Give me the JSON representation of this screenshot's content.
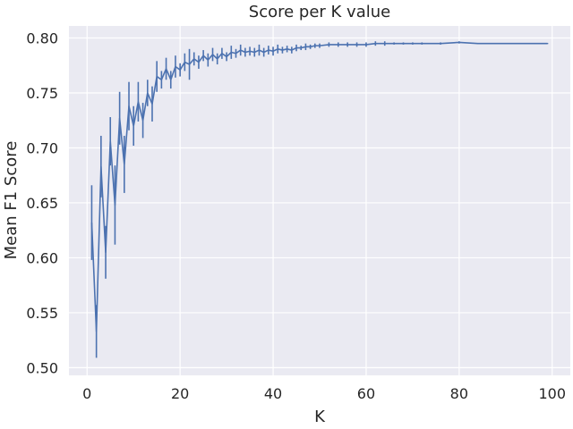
{
  "chart_data": {
    "type": "line",
    "title": "Score per K value",
    "xlabel": "K",
    "ylabel": "Mean F1 Score",
    "xlim": [
      -3.9,
      103.9
    ],
    "ylim": [
      0.493,
      0.811
    ],
    "grid": true,
    "xticks": [
      0,
      20,
      40,
      60,
      80,
      100
    ],
    "yticks": [
      0.5,
      0.55,
      0.6,
      0.65,
      0.7,
      0.75,
      0.8
    ],
    "xtick_labels": [
      "0",
      "20",
      "40",
      "60",
      "80",
      "100"
    ],
    "ytick_labels": [
      "0.50",
      "0.55",
      "0.60",
      "0.65",
      "0.70",
      "0.75",
      "0.80"
    ],
    "colors": {
      "background": "#ffffff",
      "plot_area": "#eaeaf2",
      "grid": "#ffffff",
      "line": "#4c72b0",
      "text": "#262626"
    },
    "series": [
      {
        "name": "Mean F1 Score",
        "x": [
          1,
          2,
          3,
          4,
          5,
          6,
          7,
          8,
          9,
          10,
          11,
          12,
          13,
          14,
          15,
          16,
          17,
          18,
          19,
          20,
          21,
          22,
          23,
          24,
          25,
          26,
          27,
          28,
          29,
          30,
          31,
          32,
          33,
          34,
          35,
          36,
          37,
          38,
          39,
          40,
          41,
          42,
          43,
          44,
          45,
          46,
          47,
          48,
          49,
          50,
          52,
          54,
          56,
          58,
          60,
          62,
          64,
          66,
          68,
          70,
          72,
          76,
          80,
          84,
          88,
          92,
          96,
          99
        ],
        "y": [
          0.632,
          0.533,
          0.683,
          0.605,
          0.706,
          0.648,
          0.727,
          0.685,
          0.738,
          0.72,
          0.742,
          0.725,
          0.75,
          0.74,
          0.765,
          0.762,
          0.772,
          0.762,
          0.774,
          0.771,
          0.778,
          0.776,
          0.781,
          0.778,
          0.784,
          0.78,
          0.785,
          0.781,
          0.786,
          0.783,
          0.787,
          0.786,
          0.789,
          0.787,
          0.788,
          0.787,
          0.789,
          0.787,
          0.789,
          0.788,
          0.79,
          0.789,
          0.79,
          0.789,
          0.791,
          0.791,
          0.792,
          0.792,
          0.793,
          0.793,
          0.794,
          0.794,
          0.794,
          0.794,
          0.794,
          0.795,
          0.795,
          0.795,
          0.795,
          0.795,
          0.795,
          0.795,
          0.796,
          0.795,
          0.795,
          0.795,
          0.795,
          0.795
        ],
        "err": [
          0.034,
          0.024,
          0.028,
          0.024,
          0.022,
          0.036,
          0.024,
          0.026,
          0.022,
          0.018,
          0.018,
          0.016,
          0.012,
          0.016,
          0.014,
          0.008,
          0.01,
          0.008,
          0.01,
          0.006,
          0.008,
          0.014,
          0.006,
          0.006,
          0.005,
          0.006,
          0.006,
          0.005,
          0.005,
          0.004,
          0.006,
          0.004,
          0.005,
          0.004,
          0.004,
          0.004,
          0.005,
          0.004,
          0.004,
          0.004,
          0.004,
          0.003,
          0.003,
          0.003,
          0.003,
          0.002,
          0.003,
          0.002,
          0.002,
          0.002,
          0.002,
          0.002,
          0.002,
          0.002,
          0.002,
          0.002,
          0.002,
          0.001,
          0.001,
          0.001,
          0.001,
          0.001,
          0.001,
          0.0005,
          0.0005,
          0.0005,
          0.0005,
          0.0005
        ]
      }
    ]
  }
}
